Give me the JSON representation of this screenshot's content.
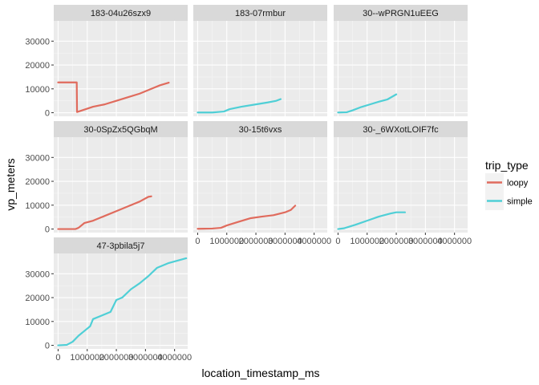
{
  "chart_data": {
    "type": "line",
    "facet_layout": "wrap 3 columns",
    "xlabel": "location_timestamp_ms",
    "ylabel": "vp_meters",
    "xlim": [
      -150000,
      4450000
    ],
    "ylim": [
      -1500,
      38500
    ],
    "x_ticks": [
      0,
      1000000,
      2000000,
      3000000,
      4000000
    ],
    "x_tick_labels": [
      "0",
      "1000000",
      "2000000",
      "3000000",
      "4000000"
    ],
    "y_ticks": [
      0,
      10000,
      20000,
      30000
    ],
    "y_tick_labels": [
      "0",
      "10000",
      "20000",
      "30000"
    ],
    "legend": {
      "title": "trip_type",
      "position": "right",
      "entries": [
        {
          "label": "loopy",
          "color": "#E06B5D"
        },
        {
          "label": "simple",
          "color": "#4FCFD6"
        }
      ]
    },
    "facets": [
      {
        "label": "183-04u26szx9",
        "trip_type": "loopy",
        "points": [
          [
            0,
            12700
          ],
          [
            600000,
            12700
          ],
          [
            640000,
            12700
          ],
          [
            650000,
            300
          ],
          [
            900000,
            1300
          ],
          [
            1200000,
            2500
          ],
          [
            1600000,
            3500
          ],
          [
            2000000,
            5000
          ],
          [
            2400000,
            6500
          ],
          [
            2800000,
            8000
          ],
          [
            3200000,
            10000
          ],
          [
            3500000,
            11500
          ],
          [
            3800000,
            12600
          ]
        ]
      },
      {
        "label": "183-07rmbur",
        "trip_type": "simple",
        "points": [
          [
            0,
            100
          ],
          [
            500000,
            100
          ],
          [
            900000,
            500
          ],
          [
            1100000,
            1500
          ],
          [
            1500000,
            2500
          ],
          [
            2000000,
            3500
          ],
          [
            2400000,
            4300
          ],
          [
            2700000,
            5000
          ],
          [
            2850000,
            5700
          ]
        ]
      },
      {
        "label": "30--wPRGN1uEEG",
        "trip_type": "simple",
        "points": [
          [
            0,
            100
          ],
          [
            300000,
            200
          ],
          [
            500000,
            1000
          ],
          [
            800000,
            2400
          ],
          [
            1100000,
            3500
          ],
          [
            1400000,
            4600
          ],
          [
            1700000,
            5600
          ],
          [
            2000000,
            7700
          ]
        ]
      },
      {
        "label": "30-0SpZx5QGbqM",
        "trip_type": "loopy",
        "points": [
          [
            0,
            0
          ],
          [
            600000,
            0
          ],
          [
            700000,
            500
          ],
          [
            900000,
            2500
          ],
          [
            1200000,
            3500
          ],
          [
            1600000,
            5500
          ],
          [
            2000000,
            7500
          ],
          [
            2400000,
            9500
          ],
          [
            2800000,
            11500
          ],
          [
            3100000,
            13500
          ],
          [
            3200000,
            13700
          ]
        ]
      },
      {
        "label": "30-15t6vxs",
        "trip_type": "loopy",
        "points": [
          [
            0,
            100
          ],
          [
            500000,
            200
          ],
          [
            800000,
            500
          ],
          [
            1000000,
            1500
          ],
          [
            1400000,
            3000
          ],
          [
            1800000,
            4500
          ],
          [
            2200000,
            5200
          ],
          [
            2600000,
            5800
          ],
          [
            3000000,
            7000
          ],
          [
            3200000,
            8000
          ],
          [
            3350000,
            9800
          ]
        ]
      },
      {
        "label": "30-_6WXotLOIF7fc",
        "trip_type": "simple",
        "points": [
          [
            0,
            0
          ],
          [
            200000,
            300
          ],
          [
            600000,
            1800
          ],
          [
            1000000,
            3500
          ],
          [
            1400000,
            5200
          ],
          [
            1800000,
            6500
          ],
          [
            2000000,
            7000
          ],
          [
            2300000,
            7000
          ]
        ]
      },
      {
        "label": "47-3pbila5j7",
        "trip_type": "simple",
        "points": [
          [
            0,
            0
          ],
          [
            300000,
            200
          ],
          [
            500000,
            1500
          ],
          [
            700000,
            4000
          ],
          [
            900000,
            6000
          ],
          [
            1100000,
            8000
          ],
          [
            1200000,
            11000
          ],
          [
            1500000,
            12500
          ],
          [
            1800000,
            14000
          ],
          [
            2000000,
            19000
          ],
          [
            2200000,
            20000
          ],
          [
            2500000,
            23500
          ],
          [
            2800000,
            26000
          ],
          [
            3100000,
            29000
          ],
          [
            3400000,
            32500
          ],
          [
            3800000,
            34500
          ],
          [
            4100000,
            35500
          ],
          [
            4400000,
            36500
          ]
        ]
      }
    ]
  }
}
